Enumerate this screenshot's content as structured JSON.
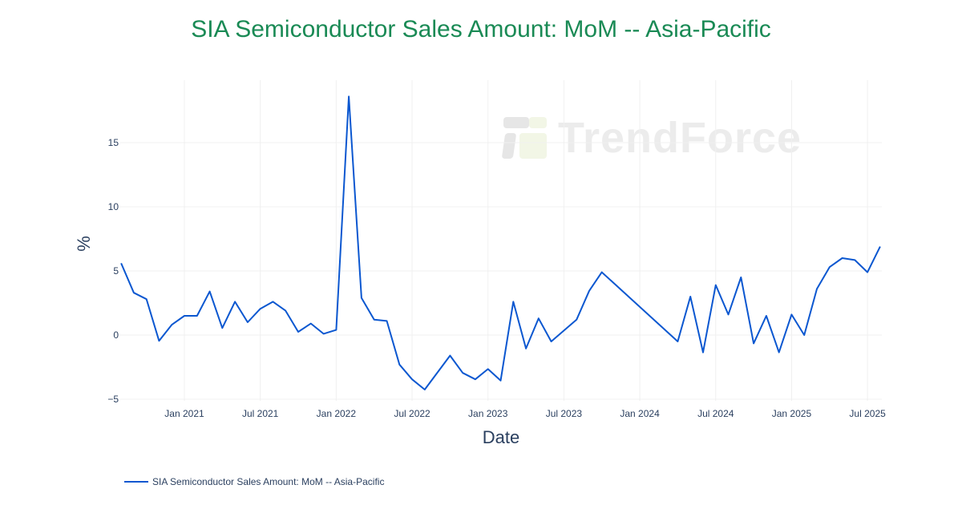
{
  "chart_title": "SIA Semiconductor Sales Amount: MoM -- Asia-Pacific",
  "watermark": {
    "text": "TrendForce",
    "icon": "trendforce-logo-icon"
  },
  "legend": {
    "label": "SIA Semiconductor Sales Amount: MoM -- Asia-Pacific",
    "color": "#0b57d0"
  },
  "colors": {
    "title": "#1a8a55",
    "line": "#0b57d0",
    "grid": "#f0f0f0",
    "axis_text": "#2a3f5f"
  },
  "chart_data": {
    "type": "line",
    "title": "SIA Semiconductor Sales Amount: MoM -- Asia-Pacific",
    "xlabel": "Date",
    "ylabel": "%",
    "ylim": [
      -5,
      19
    ],
    "yticks": [
      -5,
      0,
      5,
      10,
      15
    ],
    "ytick_labels": [
      "−5",
      "0",
      "5",
      "10",
      "15"
    ],
    "xticks": [
      "Jan 2021",
      "Jul 2021",
      "Jan 2022",
      "Jul 2022",
      "Jan 2023",
      "Jul 2023",
      "Jan 2024",
      "Jul 2024",
      "Jan 2025",
      "Jul 2025"
    ],
    "grid": true,
    "legend_position": "bottom-left",
    "series": [
      {
        "name": "SIA Semiconductor Sales Amount: MoM -- Asia-Pacific",
        "x": [
          "2020-08",
          "2020-09",
          "2020-10",
          "2020-11",
          "2020-12",
          "2021-01",
          "2021-02",
          "2021-03",
          "2021-04",
          "2021-05",
          "2021-06",
          "2021-07",
          "2021-08",
          "2021-09",
          "2021-10",
          "2021-11",
          "2021-12",
          "2022-01",
          "2022-02",
          "2022-03",
          "2022-04",
          "2022-05",
          "2022-06",
          "2022-07",
          "2022-08",
          "2022-10",
          "2022-11",
          "2022-12",
          "2023-01",
          "2023-02",
          "2023-03",
          "2023-04",
          "2023-05",
          "2023-06",
          "2023-08",
          "2023-09",
          "2023-10",
          "2024-04",
          "2024-05",
          "2024-06",
          "2024-07",
          "2024-08",
          "2024-09",
          "2024-10",
          "2024-11",
          "2024-12",
          "2025-01",
          "2025-02",
          "2025-03",
          "2025-04",
          "2025-05",
          "2025-06",
          "2025-07",
          "2025-08"
        ],
        "values": [
          5.6,
          3.3,
          2.8,
          -0.45,
          0.8,
          1.5,
          1.5,
          3.4,
          0.55,
          2.6,
          1.0,
          2.05,
          2.6,
          1.9,
          0.25,
          0.9,
          0.1,
          0.4,
          18.6,
          2.9,
          1.2,
          1.1,
          -2.3,
          -3.45,
          -4.25,
          -1.6,
          -2.95,
          -3.45,
          -2.65,
          -3.55,
          2.6,
          -1.05,
          1.3,
          -0.5,
          1.2,
          3.45,
          4.9,
          -0.5,
          3.0,
          -1.35,
          3.9,
          1.6,
          4.5,
          -0.65,
          1.5,
          -1.35,
          1.6,
          0.0,
          3.6,
          5.3,
          6.0,
          5.85,
          4.9,
          6.9
        ]
      }
    ]
  }
}
